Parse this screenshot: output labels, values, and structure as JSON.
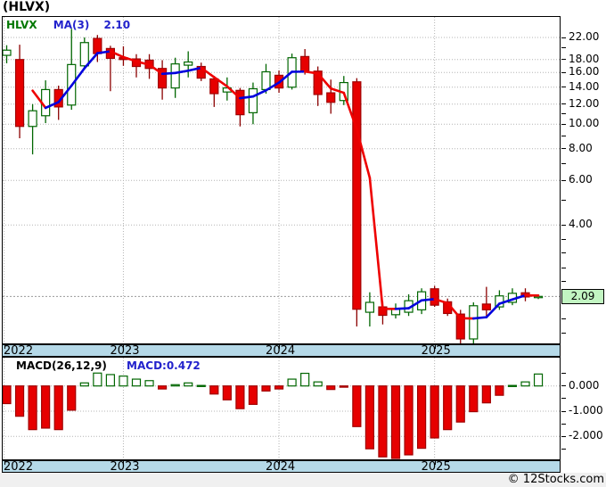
{
  "title": "(HLVX)",
  "legend": {
    "symbol": "HLVX",
    "ma_label": "MA(3)",
    "ma_value": "2.10"
  },
  "macd_header": {
    "label": "MACD(26,12,9)",
    "value": "MACD:0.472"
  },
  "price_marker": "2.09",
  "watermark": "© 12Stocks.com",
  "colors": {
    "up_outline": "#006600",
    "up_fill": "#ffffff",
    "up_wick": "#006600",
    "down_fill": "#e60000",
    "down_stroke": "#a00000",
    "down_wick": "#8b0000",
    "ma_up": "#0000dd",
    "ma_down": "#ee0000",
    "grid": "#b4b4b4",
    "price_line": "#999999",
    "band_bg": "#b5d9e8",
    "legend_symbol": "#007700",
    "legend_blue": "#2222cc",
    "price_box_bg": "#c2f5c2",
    "axis_text": "#000000"
  },
  "chart_data": [
    {
      "type": "candlestick",
      "title": "(HLVX)",
      "symbol": "HLVX",
      "period": "monthly",
      "y_scale": "log",
      "ylim": [
        1.3,
        25
      ],
      "grid": true,
      "y_ticks": [
        22,
        18,
        16,
        14,
        12,
        10,
        8,
        6,
        4
      ],
      "y_tick_labels": [
        "22.00",
        "18.00",
        "16.00",
        "14.00",
        "12.00",
        "10.00",
        "8.00",
        "6.00",
        "4.00"
      ],
      "y_minor_ticks": [
        20,
        11,
        9,
        7,
        5,
        3.5,
        3.1,
        2.7,
        2.4,
        1.7,
        1.5
      ],
      "last_price": 2.09,
      "ma_window": 3,
      "ma_last_value": 2.1,
      "x_axis_years": [
        {
          "label": "2022",
          "jan_index": -3
        },
        {
          "label": "2023",
          "jan_index": 9
        },
        {
          "label": "2024",
          "jan_index": 21
        },
        {
          "label": "2025",
          "jan_index": 33
        }
      ],
      "first_month": "2022-04",
      "ohlc": [
        [
          18.7,
          20.5,
          17.4,
          19.6
        ],
        [
          18.0,
          20.6,
          8.8,
          9.8
        ],
        [
          9.8,
          12.0,
          7.6,
          11.3
        ],
        [
          10.8,
          14.9,
          10.1,
          13.7
        ],
        [
          13.7,
          14.2,
          10.4,
          11.7
        ],
        [
          11.9,
          23.8,
          11.4,
          17.2
        ],
        [
          17.0,
          22.0,
          16.5,
          21.0
        ],
        [
          21.8,
          22.5,
          17.6,
          19.0
        ],
        [
          19.9,
          20.4,
          13.5,
          18.2
        ],
        [
          18.3,
          20.3,
          17.0,
          18.0
        ],
        [
          18.1,
          18.9,
          15.3,
          16.9
        ],
        [
          17.9,
          18.9,
          15.1,
          16.6
        ],
        [
          16.6,
          17.9,
          12.5,
          13.9
        ],
        [
          13.9,
          18.3,
          12.7,
          17.3
        ],
        [
          17.1,
          19.4,
          15.3,
          17.6
        ],
        [
          16.9,
          17.5,
          14.8,
          15.2
        ],
        [
          15.1,
          15.5,
          11.7,
          13.2
        ],
        [
          13.4,
          15.3,
          12.4,
          13.9
        ],
        [
          13.6,
          13.9,
          9.8,
          10.9
        ],
        [
          11.1,
          14.6,
          10.0,
          13.8
        ],
        [
          13.7,
          17.3,
          13.2,
          16.1
        ],
        [
          15.6,
          16.3,
          13.3,
          13.9
        ],
        [
          14.0,
          19.0,
          13.7,
          18.3
        ],
        [
          18.5,
          19.8,
          15.7,
          16.2
        ],
        [
          16.2,
          16.9,
          11.8,
          13.1
        ],
        [
          13.3,
          15.0,
          11.0,
          12.2
        ],
        [
          12.4,
          15.5,
          11.9,
          14.6
        ],
        [
          14.7,
          15.2,
          1.59,
          1.86
        ],
        [
          1.81,
          2.17,
          1.59,
          1.98
        ],
        [
          1.9,
          2.0,
          1.62,
          1.76
        ],
        [
          1.77,
          1.96,
          1.71,
          1.86
        ],
        [
          1.81,
          2.13,
          1.75,
          2.01
        ],
        [
          1.85,
          2.25,
          1.78,
          2.18
        ],
        [
          2.24,
          2.3,
          1.9,
          1.93
        ],
        [
          1.99,
          2.05,
          1.75,
          1.79
        ],
        [
          1.78,
          1.85,
          1.36,
          1.42
        ],
        [
          1.42,
          1.98,
          1.32,
          1.92
        ],
        [
          1.95,
          2.28,
          1.75,
          1.85
        ],
        [
          1.9,
          2.21,
          1.85,
          2.1
        ],
        [
          1.98,
          2.25,
          1.93,
          2.15
        ],
        [
          2.16,
          2.25,
          2.0,
          2.08
        ],
        [
          2.07,
          2.13,
          2.04,
          2.09
        ]
      ]
    },
    {
      "type": "bar",
      "name": "MACD(26,12,9)",
      "current_value": 0.472,
      "grid": true,
      "y_ticks": [
        0,
        -1,
        -2
      ],
      "y_tick_labels": [
        "0.000",
        "-1.000",
        "-2.000"
      ],
      "y_minor_ticks": [
        0.5,
        -0.5,
        -1.5,
        -2.5
      ],
      "values": [
        -0.7,
        -1.2,
        -1.73,
        -1.67,
        -1.73,
        -0.96,
        0.12,
        0.51,
        0.45,
        0.39,
        0.27,
        0.21,
        -0.12,
        0.05,
        0.12,
        0.02,
        -0.32,
        -0.55,
        -0.9,
        -0.73,
        -0.2,
        -0.12,
        0.27,
        0.5,
        0.16,
        -0.14,
        -0.05,
        -1.61,
        -2.49,
        -2.81,
        -2.91,
        -2.73,
        -2.47,
        -2.06,
        -1.73,
        -1.43,
        -1.02,
        -0.67,
        -0.37,
        0.02,
        0.16,
        0.472
      ]
    }
  ]
}
